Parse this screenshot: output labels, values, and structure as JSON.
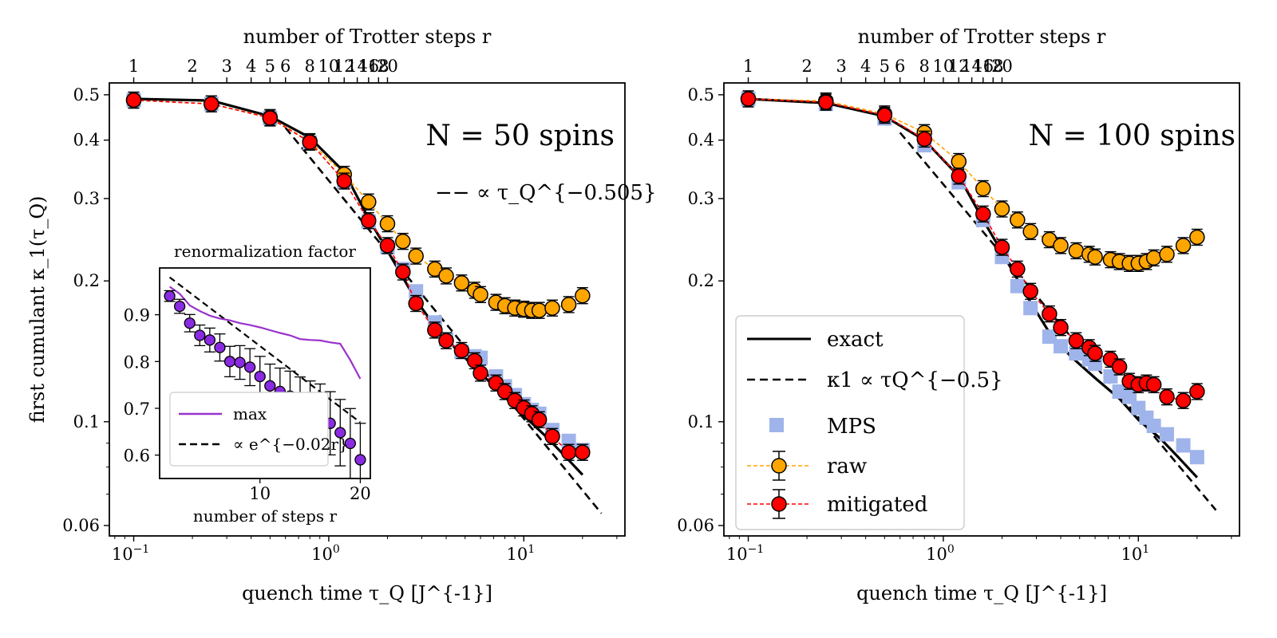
{
  "top_axis_label": "number of Trotter steps r",
  "top_ticks": [
    "1",
    "2",
    "3",
    "4",
    "5",
    "6",
    "8",
    "10",
    "12",
    "14",
    "16",
    "18",
    "20"
  ],
  "x_label": "quench time τ_Q [J^{-1}]",
  "y_label": "first cumulant κ_1(τ_Q)",
  "panels": [
    {
      "annotation": "N = 50 spins",
      "fit_label": "−− ∝ τ_Q^{−0.505}"
    },
    {
      "annotation": "N = 100 spins"
    }
  ],
  "legend": {
    "exact": "exact",
    "fit": "κ1 ∝ τQ^{−0.5}",
    "mps": "MPS",
    "raw": "raw",
    "mitigated": "mitigated"
  },
  "inset": {
    "title": "renormalization factor",
    "xlabel": "number of steps r",
    "legend_max": "max",
    "legend_fit": "∝ e^{−0.02r}",
    "y_ticks": [
      "0.6",
      "0.7",
      "0.8",
      "0.9"
    ],
    "x_ticks": [
      "10",
      "20"
    ]
  },
  "colors": {
    "raw": "#ffa500",
    "mitigated": "#ff0000",
    "mps": "#9fb4ea",
    "inset": "#8a2be2",
    "max_line": "#9932cc"
  },
  "chart_data": [
    {
      "type": "scatter",
      "title": "N = 50 spins",
      "xlabel": "quench time τ_Q [J^{-1}]",
      "ylabel": "first cumulant κ_1(τ_Q)",
      "x_scale": "log",
      "y_scale": "log",
      "xlim": [
        0.075,
        33
      ],
      "ylim": [
        0.057,
        0.53
      ],
      "x_ticks": [
        0.1,
        1,
        10
      ],
      "y_ticks": [
        0.06,
        0.1,
        0.2,
        0.3,
        0.4,
        0.5
      ],
      "top_axis": {
        "label": "number of Trotter steps r",
        "ticks": [
          1,
          2,
          3,
          4,
          5,
          6,
          8,
          10,
          12,
          14,
          16,
          18,
          20
        ]
      },
      "series": [
        {
          "name": "exact",
          "style": "line",
          "x": [
            0.1,
            0.25,
            0.5,
            0.8,
            1.2,
            1.6,
            2,
            2.8,
            3.5,
            4.5,
            6,
            8,
            10,
            13,
            16,
            20
          ],
          "y": [
            0.49,
            0.486,
            0.45,
            0.405,
            0.342,
            0.272,
            0.232,
            0.182,
            0.16,
            0.143,
            0.127,
            0.113,
            0.103,
            0.093,
            0.085,
            0.077
          ]
        },
        {
          "name": "κ1 ∝ τQ^{-0.505}",
          "style": "dashed",
          "x": [
            0.6,
            25
          ],
          "y": [
            0.425,
            0.0637
          ]
        },
        {
          "name": "MPS",
          "style": "square",
          "x": [
            0.1,
            0.25,
            0.5,
            0.8,
            1.2,
            1.6,
            2,
            2.4,
            2.8,
            3.5,
            4,
            4.8,
            5.6,
            6,
            7.2,
            8,
            9,
            10,
            11,
            12,
            14,
            17,
            20
          ],
          "y": [
            0.487,
            0.478,
            0.446,
            0.395,
            0.326,
            0.268,
            0.236,
            0.212,
            0.19,
            0.163,
            0.15,
            0.141,
            0.138,
            0.137,
            0.125,
            0.119,
            0.114,
            0.109,
            0.106,
            0.104,
            0.096,
            0.091,
            0.087
          ]
        },
        {
          "name": "raw",
          "style": "circle-errorbar",
          "x": [
            0.1,
            0.25,
            0.5,
            0.8,
            1.2,
            1.6,
            2,
            2.4,
            2.8,
            3.5,
            4,
            4.8,
            5.6,
            6,
            7.2,
            8,
            9,
            10,
            11,
            12,
            14,
            17,
            20
          ],
          "y": [
            0.487,
            0.478,
            0.447,
            0.397,
            0.338,
            0.295,
            0.265,
            0.243,
            0.226,
            0.212,
            0.205,
            0.198,
            0.191,
            0.187,
            0.18,
            0.177,
            0.175,
            0.174,
            0.173,
            0.173,
            0.175,
            0.178,
            0.186
          ]
        },
        {
          "name": "mitigated",
          "style": "circle-errorbar",
          "x": [
            0.1,
            0.25,
            0.5,
            0.8,
            1.2,
            1.6,
            2,
            2.4,
            2.8,
            3.5,
            4,
            4.8,
            5.6,
            6,
            7.2,
            8,
            9,
            10,
            11,
            12,
            14,
            17,
            20
          ],
          "y": [
            0.487,
            0.478,
            0.446,
            0.396,
            0.327,
            0.269,
            0.238,
            0.209,
            0.179,
            0.157,
            0.149,
            0.142,
            0.135,
            0.127,
            0.121,
            0.116,
            0.111,
            0.107,
            0.104,
            0.101,
            0.093,
            0.086,
            0.086
          ]
        }
      ]
    },
    {
      "type": "line",
      "title": "renormalization factor",
      "xlabel": "number of steps r",
      "x_scale": "linear",
      "y_scale": "linear",
      "xlim": [
        0,
        21
      ],
      "ylim": [
        0.55,
        1.0
      ],
      "x_ticks": [
        10,
        20
      ],
      "y_ticks": [
        0.6,
        0.7,
        0.8,
        0.9
      ],
      "series": [
        {
          "name": "max",
          "style": "line",
          "x": [
            1,
            2,
            3,
            4,
            5,
            6,
            7,
            8,
            9,
            10,
            11,
            12,
            13,
            14,
            15,
            16,
            17,
            18,
            19,
            20
          ],
          "y": [
            0.96,
            0.945,
            0.92,
            0.908,
            0.898,
            0.892,
            0.888,
            0.882,
            0.878,
            0.873,
            0.867,
            0.861,
            0.856,
            0.848,
            0.846,
            0.845,
            0.841,
            0.838,
            0.803,
            0.763
          ]
        },
        {
          "name": "∝ e^{-0.02r}",
          "style": "dashed",
          "x": [
            1,
            20
          ],
          "y": [
            0.98,
            0.67
          ]
        },
        {
          "name": "renormalization",
          "style": "circle-errorbar",
          "x": [
            1,
            2,
            3,
            4,
            5,
            6,
            7,
            8,
            9,
            10,
            11,
            12,
            13,
            14,
            15,
            16,
            17,
            18,
            19,
            20
          ],
          "y": [
            0.94,
            0.918,
            0.882,
            0.856,
            0.846,
            0.83,
            0.8,
            0.798,
            0.788,
            0.768,
            0.748,
            0.736,
            0.726,
            0.71,
            0.698,
            0.688,
            0.668,
            0.648,
            0.625,
            0.59
          ]
        }
      ]
    },
    {
      "type": "scatter",
      "title": "N = 100 spins",
      "xlabel": "quench time τ_Q [J^{-1}]",
      "x_scale": "log",
      "y_scale": "log",
      "xlim": [
        0.075,
        33
      ],
      "ylim": [
        0.057,
        0.53
      ],
      "x_ticks": [
        0.1,
        1,
        10
      ],
      "y_ticks": [
        0.06,
        0.1,
        0.2,
        0.3,
        0.4,
        0.5
      ],
      "top_axis": {
        "label": "number of Trotter steps r",
        "ticks": [
          1,
          2,
          3,
          4,
          5,
          6,
          8,
          10,
          12,
          14,
          16,
          18,
          20
        ]
      },
      "series": [
        {
          "name": "exact",
          "style": "line",
          "x": [
            0.1,
            0.25,
            0.5,
            0.8,
            1.2,
            1.6,
            2,
            2.8,
            3.5,
            4.5,
            6,
            8,
            10,
            13,
            16,
            20
          ],
          "y": [
            0.49,
            0.48,
            0.45,
            0.4,
            0.335,
            0.27,
            0.23,
            0.18,
            0.155,
            0.138,
            0.124,
            0.112,
            0.101,
            0.092,
            0.084,
            0.076
          ]
        },
        {
          "name": "κ1 ∝ τQ^{-0.5}",
          "style": "dashed",
          "x": [
            0.6,
            25
          ],
          "y": [
            0.415,
            0.0647
          ]
        },
        {
          "name": "MPS",
          "style": "square",
          "x": [
            0.1,
            0.25,
            0.5,
            0.8,
            1.2,
            1.6,
            2,
            2.4,
            2.8,
            3.5,
            4,
            4.8,
            5.6,
            6,
            7.2,
            8,
            9,
            10,
            11,
            12,
            14,
            17,
            20
          ],
          "y": [
            0.49,
            0.478,
            0.445,
            0.39,
            0.325,
            0.27,
            0.225,
            0.195,
            0.175,
            0.152,
            0.145,
            0.14,
            0.136,
            0.133,
            0.125,
            0.116,
            0.113,
            0.107,
            0.102,
            0.098,
            0.094,
            0.089,
            0.084
          ]
        },
        {
          "name": "raw",
          "style": "circle-errorbar",
          "x": [
            0.1,
            0.25,
            0.5,
            0.8,
            1.2,
            1.6,
            2,
            2.4,
            2.8,
            3.5,
            4,
            4.8,
            5.6,
            6,
            7.2,
            8,
            9,
            10,
            11,
            12,
            14,
            17,
            20
          ],
          "y": [
            0.49,
            0.485,
            0.455,
            0.415,
            0.36,
            0.315,
            0.285,
            0.27,
            0.255,
            0.245,
            0.238,
            0.232,
            0.228,
            0.225,
            0.222,
            0.22,
            0.218,
            0.218,
            0.22,
            0.224,
            0.228,
            0.238,
            0.248
          ]
        },
        {
          "name": "mitigated",
          "style": "circle-errorbar",
          "x": [
            0.1,
            0.25,
            0.5,
            0.8,
            1.2,
            1.6,
            2,
            2.4,
            2.8,
            3.5,
            4,
            4.8,
            5.6,
            6,
            7.2,
            8,
            9,
            10,
            11,
            12,
            14,
            17,
            20
          ],
          "y": [
            0.49,
            0.482,
            0.452,
            0.402,
            0.335,
            0.278,
            0.236,
            0.212,
            0.19,
            0.17,
            0.159,
            0.149,
            0.144,
            0.14,
            0.136,
            0.131,
            0.122,
            0.12,
            0.121,
            0.12,
            0.113,
            0.111,
            0.116
          ]
        }
      ]
    }
  ]
}
